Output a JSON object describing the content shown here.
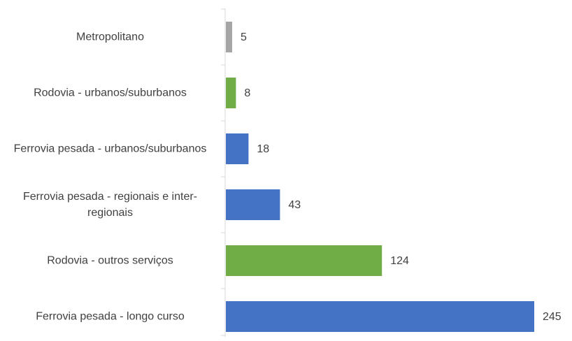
{
  "chart_data": {
    "type": "bar",
    "orientation": "horizontal",
    "categories": [
      "Metropolitano",
      "Rodovia - urbanos/suburbanos",
      "Ferrovia pesada - urbanos/suburbanos",
      "Ferrovia pesada - regionais e inter-regionais",
      "Rodovia - outros serviços",
      "Ferrovia pesada - longo curso"
    ],
    "values": [
      5,
      8,
      18,
      43,
      124,
      245
    ],
    "colors": [
      "#a5a5a5",
      "#70ad47",
      "#4472c4",
      "#4472c4",
      "#70ad47",
      "#4472c4"
    ]
  }
}
